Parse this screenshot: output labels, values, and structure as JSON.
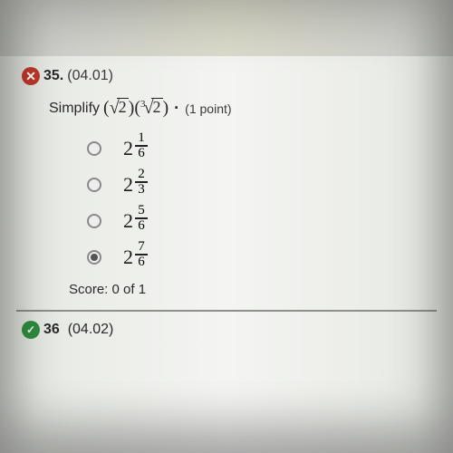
{
  "question": {
    "status_icon": "wrong",
    "number": "35.",
    "standard": "(04.01)",
    "prompt_verb": "Simplify",
    "expression": {
      "open1": "(",
      "root1_radicand": "2",
      "close1": ")",
      "open2": "(",
      "root2_index": "3",
      "root2_radicand": "2",
      "close2": ")",
      "dot": "·"
    },
    "points_label": "(1 point)"
  },
  "options": [
    {
      "selected": false,
      "base": "2",
      "num": "1",
      "den": "6"
    },
    {
      "selected": false,
      "base": "2",
      "num": "2",
      "den": "3"
    },
    {
      "selected": false,
      "base": "2",
      "num": "5",
      "den": "6"
    },
    {
      "selected": true,
      "base": "2",
      "num": "7",
      "den": "6"
    }
  ],
  "score": {
    "label": "Score:",
    "value": "0 of 1"
  },
  "next": {
    "number": "36",
    "standard": "(04.02)"
  },
  "colors": {
    "wrong": "#c0392b",
    "correct": "#2f8f3f",
    "text": "#2a2a2a"
  }
}
